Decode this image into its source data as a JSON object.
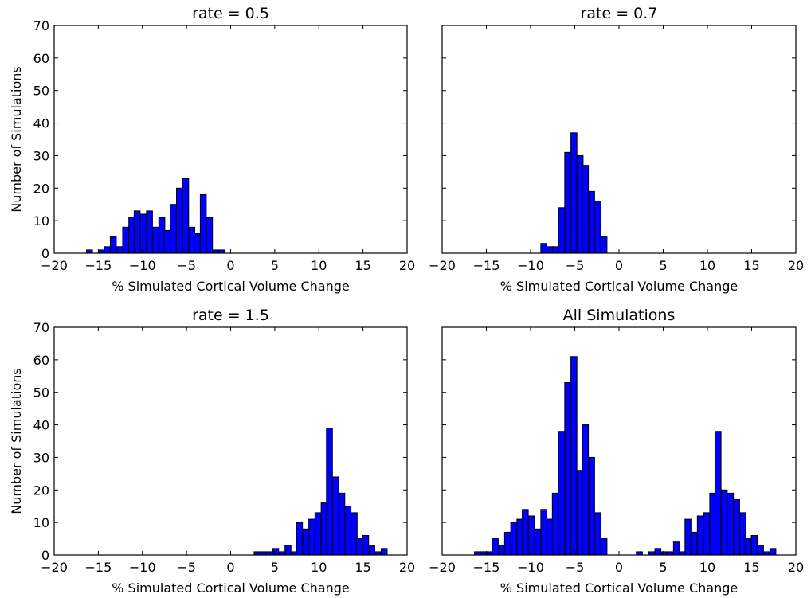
{
  "chart_data": [
    {
      "type": "bar",
      "title": "rate = 0.5",
      "xlabel": "% Simulated Cortical Volume Change",
      "ylabel": "Number of Simulations",
      "xlim": [
        -20,
        20
      ],
      "ylim": [
        0,
        70
      ],
      "xticks": [
        "−20",
        "−15",
        "−10",
        "−5",
        "0",
        "5",
        "10",
        "15",
        "20"
      ],
      "yticks": [
        "0",
        "10",
        "20",
        "30",
        "40",
        "50",
        "60",
        "70"
      ],
      "bin_width": 0.68,
      "bins": [
        {
          "x": -16.0,
          "count": 1
        },
        {
          "x": -15.3,
          "count": 0
        },
        {
          "x": -14.6,
          "count": 1
        },
        {
          "x": -14.0,
          "count": 2
        },
        {
          "x": -13.3,
          "count": 5
        },
        {
          "x": -12.6,
          "count": 2
        },
        {
          "x": -11.9,
          "count": 8
        },
        {
          "x": -11.2,
          "count": 11
        },
        {
          "x": -10.6,
          "count": 13
        },
        {
          "x": -9.9,
          "count": 12
        },
        {
          "x": -9.2,
          "count": 13
        },
        {
          "x": -8.5,
          "count": 8
        },
        {
          "x": -7.8,
          "count": 11
        },
        {
          "x": -7.2,
          "count": 7
        },
        {
          "x": -6.5,
          "count": 15
        },
        {
          "x": -5.8,
          "count": 20
        },
        {
          "x": -5.1,
          "count": 23
        },
        {
          "x": -4.4,
          "count": 8
        },
        {
          "x": -3.8,
          "count": 6
        },
        {
          "x": -3.1,
          "count": 18
        },
        {
          "x": -2.4,
          "count": 11
        },
        {
          "x": -1.7,
          "count": 1
        },
        {
          "x": -1.0,
          "count": 1
        }
      ]
    },
    {
      "type": "bar",
      "title": "rate = 0.7",
      "xlabel": "% Simulated Cortical Volume Change",
      "ylabel": "",
      "xlim": [
        -20,
        20
      ],
      "ylim": [
        0,
        70
      ],
      "xticks": [
        "−20",
        "−15",
        "−10",
        "−5",
        "0",
        "5",
        "10",
        "15",
        "20"
      ],
      "yticks": [],
      "bin_width": 0.68,
      "bins": [
        {
          "x": -8.5,
          "count": 3
        },
        {
          "x": -7.8,
          "count": 2
        },
        {
          "x": -7.2,
          "count": 2
        },
        {
          "x": -6.5,
          "count": 14
        },
        {
          "x": -5.8,
          "count": 31
        },
        {
          "x": -5.1,
          "count": 37
        },
        {
          "x": -4.4,
          "count": 30
        },
        {
          "x": -3.8,
          "count": 27
        },
        {
          "x": -3.1,
          "count": 19
        },
        {
          "x": -2.4,
          "count": 16
        },
        {
          "x": -1.7,
          "count": 5
        }
      ]
    },
    {
      "type": "bar",
      "title": "rate = 1.5",
      "xlabel": "% Simulated Cortical Volume Change",
      "ylabel": "Number of Simulations",
      "xlim": [
        -20,
        20
      ],
      "ylim": [
        0,
        70
      ],
      "xticks": [
        "−20",
        "−15",
        "−10",
        "−5",
        "0",
        "5",
        "10",
        "15",
        "20"
      ],
      "yticks": [
        "0",
        "10",
        "20",
        "30",
        "40",
        "50",
        "60",
        "70"
      ],
      "bin_width": 0.68,
      "bins": [
        {
          "x": 3.0,
          "count": 1
        },
        {
          "x": 3.7,
          "count": 1
        },
        {
          "x": 4.4,
          "count": 1
        },
        {
          "x": 5.1,
          "count": 2
        },
        {
          "x": 5.8,
          "count": 1
        },
        {
          "x": 6.5,
          "count": 3
        },
        {
          "x": 7.2,
          "count": 1
        },
        {
          "x": 7.8,
          "count": 10
        },
        {
          "x": 8.5,
          "count": 8
        },
        {
          "x": 9.2,
          "count": 11
        },
        {
          "x": 9.9,
          "count": 13
        },
        {
          "x": 10.6,
          "count": 16
        },
        {
          "x": 11.2,
          "count": 39
        },
        {
          "x": 11.9,
          "count": 24
        },
        {
          "x": 12.6,
          "count": 19
        },
        {
          "x": 13.3,
          "count": 15
        },
        {
          "x": 14.0,
          "count": 13
        },
        {
          "x": 14.6,
          "count": 5
        },
        {
          "x": 15.3,
          "count": 6
        },
        {
          "x": 16.0,
          "count": 3
        },
        {
          "x": 16.7,
          "count": 1
        },
        {
          "x": 17.4,
          "count": 2
        }
      ]
    },
    {
      "type": "bar",
      "title": "All Simulations",
      "xlabel": "% Simulated Cortical Volume Change",
      "ylabel": "",
      "xlim": [
        -20,
        20
      ],
      "ylim": [
        0,
        70
      ],
      "xticks": [
        "−20",
        "−15",
        "−10",
        "−5",
        "0",
        "5",
        "10",
        "15",
        "20"
      ],
      "yticks": [],
      "bin_width": 0.68,
      "bins": [
        {
          "x": -16.0,
          "count": 1
        },
        {
          "x": -15.3,
          "count": 1
        },
        {
          "x": -14.6,
          "count": 1
        },
        {
          "x": -14.0,
          "count": 5
        },
        {
          "x": -13.3,
          "count": 3
        },
        {
          "x": -12.6,
          "count": 7
        },
        {
          "x": -11.9,
          "count": 10
        },
        {
          "x": -11.2,
          "count": 11
        },
        {
          "x": -10.6,
          "count": 14
        },
        {
          "x": -9.9,
          "count": 12
        },
        {
          "x": -9.2,
          "count": 8
        },
        {
          "x": -8.5,
          "count": 14
        },
        {
          "x": -7.8,
          "count": 11
        },
        {
          "x": -7.2,
          "count": 19
        },
        {
          "x": -6.5,
          "count": 38
        },
        {
          "x": -5.8,
          "count": 53
        },
        {
          "x": -5.1,
          "count": 61
        },
        {
          "x": -4.4,
          "count": 26
        },
        {
          "x": -3.8,
          "count": 40
        },
        {
          "x": -3.1,
          "count": 30
        },
        {
          "x": -2.4,
          "count": 13
        },
        {
          "x": -1.7,
          "count": 5
        },
        {
          "x": 2.3,
          "count": 1
        },
        {
          "x": 3.7,
          "count": 1
        },
        {
          "x": 4.4,
          "count": 2
        },
        {
          "x": 5.1,
          "count": 1
        },
        {
          "x": 5.8,
          "count": 1
        },
        {
          "x": 6.5,
          "count": 4
        },
        {
          "x": 7.2,
          "count": 1
        },
        {
          "x": 7.8,
          "count": 11
        },
        {
          "x": 8.5,
          "count": 7
        },
        {
          "x": 9.2,
          "count": 12
        },
        {
          "x": 9.9,
          "count": 13
        },
        {
          "x": 10.6,
          "count": 19
        },
        {
          "x": 11.2,
          "count": 38
        },
        {
          "x": 11.9,
          "count": 20
        },
        {
          "x": 12.6,
          "count": 19
        },
        {
          "x": 13.3,
          "count": 17
        },
        {
          "x": 14.0,
          "count": 13
        },
        {
          "x": 14.6,
          "count": 5
        },
        {
          "x": 15.3,
          "count": 6
        },
        {
          "x": 16.0,
          "count": 3
        },
        {
          "x": 16.7,
          "count": 1
        },
        {
          "x": 17.4,
          "count": 2
        }
      ]
    }
  ]
}
